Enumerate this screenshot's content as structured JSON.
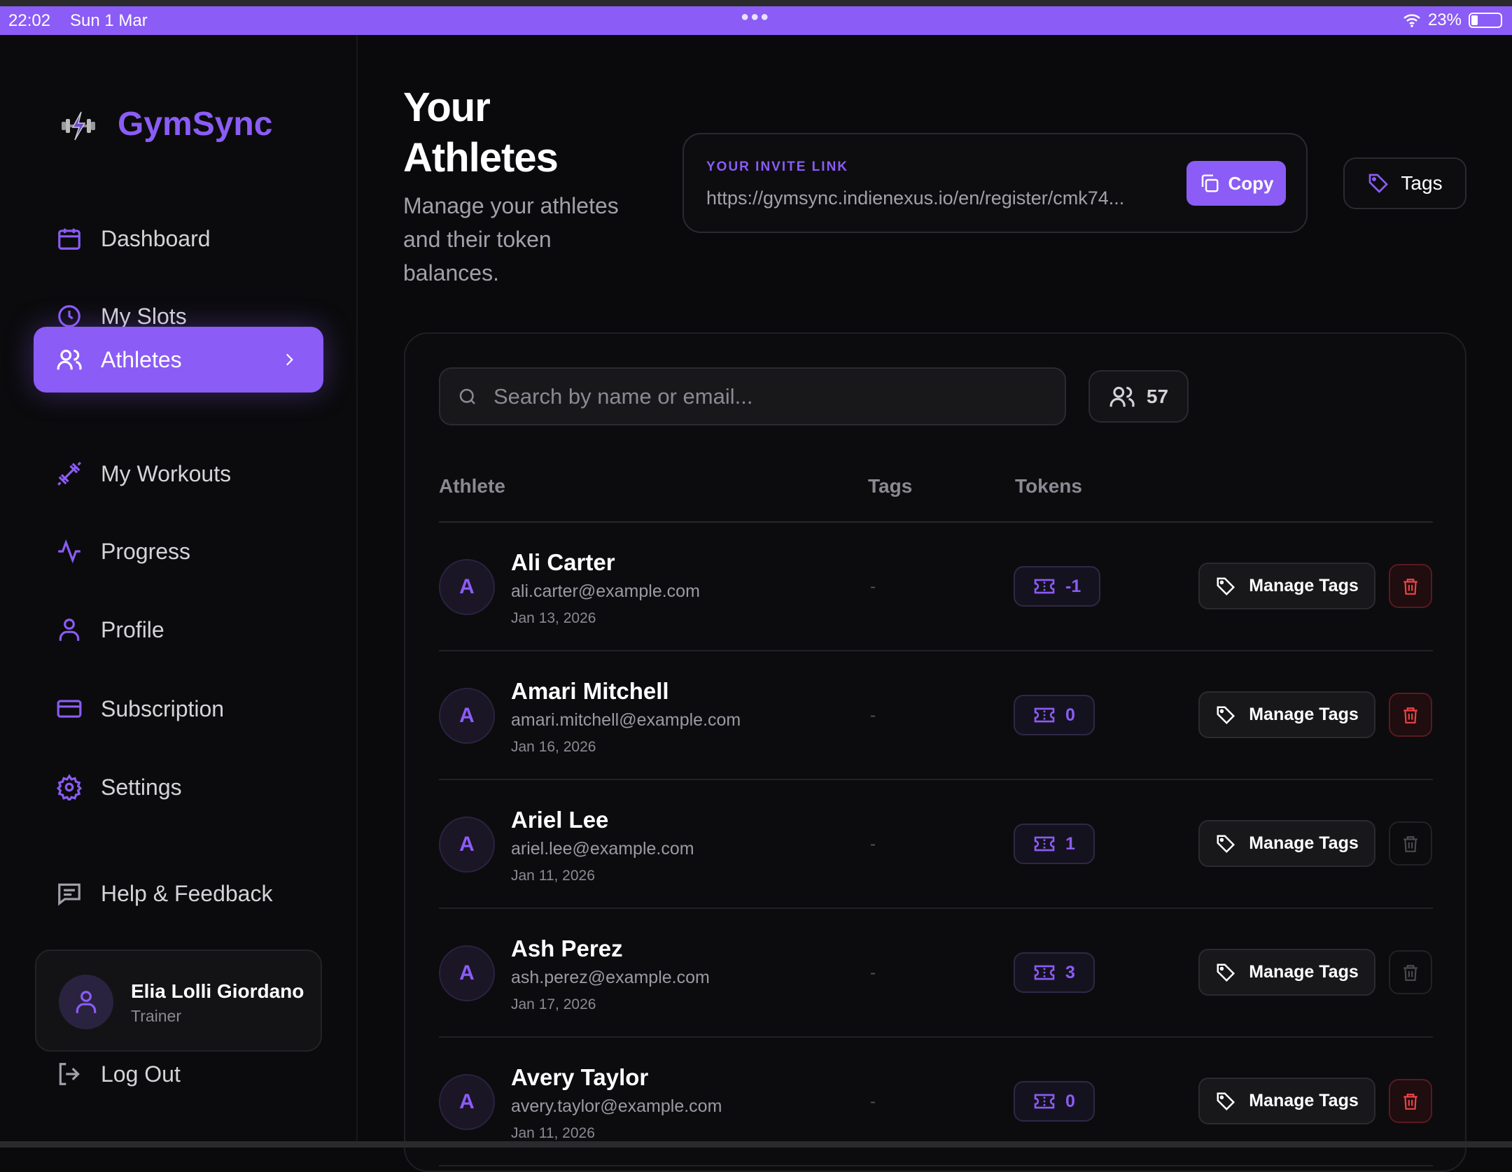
{
  "status_bar": {
    "time": "22:02",
    "date": "Sun 1 Mar",
    "battery": "23%"
  },
  "app": {
    "name": "GymSync",
    "accent": "#8b5cf6"
  },
  "sidebar": {
    "items": [
      {
        "label": "Dashboard",
        "icon": "calendar-icon"
      },
      {
        "label": "My Slots",
        "icon": "clock-icon"
      },
      {
        "label": "Athletes",
        "icon": "users-icon",
        "active": true
      },
      {
        "label": "My Workouts",
        "icon": "dumbbell-icon"
      },
      {
        "label": "Progress",
        "icon": "activity-icon"
      },
      {
        "label": "Profile",
        "icon": "user-icon"
      },
      {
        "label": "Subscription",
        "icon": "credit-card-icon"
      },
      {
        "label": "Settings",
        "icon": "gear-icon"
      }
    ],
    "help": "Help & Feedback",
    "user": {
      "name": "Elia Lolli Giordano",
      "role": "Trainer"
    },
    "logout": "Log Out"
  },
  "header": {
    "title_line1": "Your",
    "title_line2": "Athletes",
    "subtitle": "Manage your athletes and their token balances.",
    "invite_label": "YOUR INVITE LINK",
    "invite_url": "https://gymsync.indienexus.io/en/register/cmk74...",
    "copy_label": "Copy",
    "tags_label": "Tags"
  },
  "table": {
    "search_placeholder": "Search by name or email...",
    "count": "57",
    "columns": [
      "Athlete",
      "Tags",
      "Tokens"
    ],
    "manage_label": "Manage Tags",
    "rows": [
      {
        "initial": "A",
        "name": "Ali Carter",
        "email": "ali.carter@example.com",
        "date": "Jan 13, 2026",
        "tags": "-",
        "tokens": "-1",
        "deletable": true
      },
      {
        "initial": "A",
        "name": "Amari Mitchell",
        "email": "amari.mitchell@example.com",
        "date": "Jan 16, 2026",
        "tags": "-",
        "tokens": "0",
        "deletable": true
      },
      {
        "initial": "A",
        "name": "Ariel Lee",
        "email": "ariel.lee@example.com",
        "date": "Jan 11, 2026",
        "tags": "-",
        "tokens": "1",
        "deletable": false
      },
      {
        "initial": "A",
        "name": "Ash Perez",
        "email": "ash.perez@example.com",
        "date": "Jan 17, 2026",
        "tags": "-",
        "tokens": "3",
        "deletable": false
      },
      {
        "initial": "A",
        "name": "Avery Taylor",
        "email": "avery.taylor@example.com",
        "date": "Jan 11, 2026",
        "tags": "-",
        "tokens": "0",
        "deletable": true
      }
    ]
  }
}
